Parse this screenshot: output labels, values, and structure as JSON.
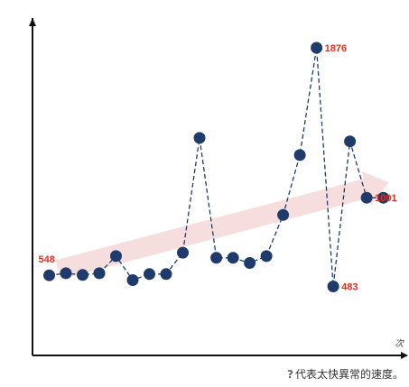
{
  "chart_data": {
    "type": "line",
    "title": "",
    "xlabel": "次",
    "ylabel": "",
    "x": [
      1,
      2,
      3,
      4,
      5,
      6,
      7,
      8,
      9,
      10,
      11,
      12,
      13,
      14,
      15,
      16,
      17,
      18,
      19,
      20,
      21
    ],
    "series": [
      {
        "values": [
          548,
          560,
          550,
          560,
          660,
          520,
          555,
          555,
          680,
          1350,
          650,
          650,
          620,
          660,
          900,
          1250,
          1876,
          483,
          1330,
          1001,
          1001
        ]
      }
    ],
    "annotations": [
      {
        "index": 0,
        "text": "548"
      },
      {
        "index": 16,
        "text": "1876"
      },
      {
        "index": 17,
        "text": "483"
      },
      {
        "index": 19,
        "text": "1001"
      }
    ],
    "trend_arrow": {
      "from": 580,
      "to": 1090
    },
    "xlim": [
      0,
      21.4
    ],
    "ylim": [
      80,
      2050
    ],
    "grid": false,
    "colors": {
      "point": "#1f3b6b",
      "line": "#1f3b6b",
      "label": "#e0301e",
      "trend": "#f5dada",
      "axis": "#111111"
    }
  },
  "footnote": {
    "icon": "?",
    "text": "代表太快異常的速度。"
  }
}
